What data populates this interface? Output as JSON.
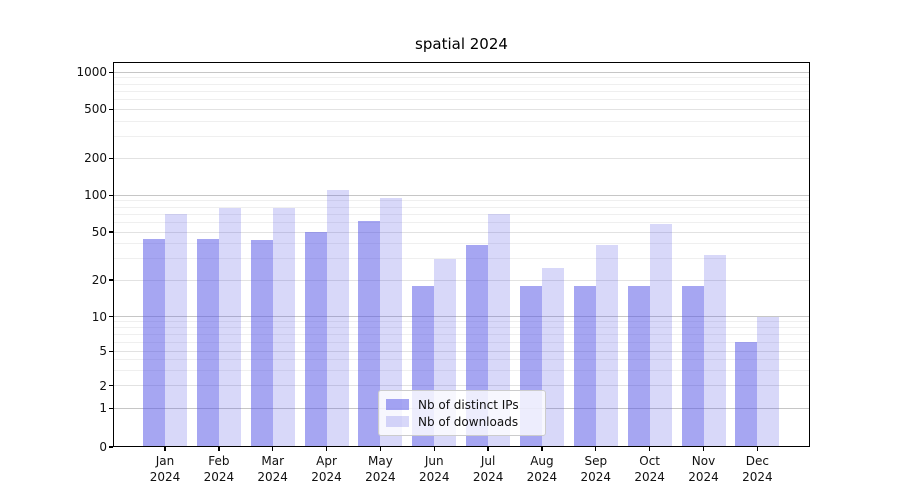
{
  "chart_data": {
    "type": "bar",
    "title": "spatial 2024",
    "months": [
      "Jan",
      "Feb",
      "Mar",
      "Apr",
      "May",
      "Jun",
      "Jul",
      "Aug",
      "Sep",
      "Oct",
      "Nov",
      "Dec"
    ],
    "year_label": "2024",
    "categories": [
      "Jan 2024",
      "Feb 2024",
      "Mar 2024",
      "Apr 2024",
      "May 2024",
      "Jun 2024",
      "Jul 2024",
      "Aug 2024",
      "Sep 2024",
      "Oct 2024",
      "Nov 2024",
      "Dec 2024"
    ],
    "series": [
      {
        "name": "Nb of distinct IPs",
        "color": "rgba(85,85,230,0.52)",
        "values": [
          44,
          44,
          43,
          50,
          61,
          18,
          39,
          18,
          18,
          18,
          18,
          6
        ]
      },
      {
        "name": "Nb of downloads",
        "color": "rgba(85,85,230,0.23)",
        "values": [
          70,
          78,
          78,
          110,
          95,
          30,
          70,
          25,
          39,
          58,
          32,
          10
        ]
      }
    ],
    "yticks": [
      0,
      1,
      2,
      5,
      10,
      20,
      50,
      100,
      200,
      500,
      1000
    ],
    "yscale": "symlog",
    "ylim": [
      0,
      1200
    ],
    "xlabel": "",
    "ylabel": "",
    "grid": "on",
    "legend_position": "lower center"
  },
  "colors": {
    "background": "#ffffff",
    "axis": "#000000",
    "text": "#111111",
    "grid_major": "#c6c6c6",
    "grid_minor": "#efefef",
    "bar_dark": "rgba(85,85,230,0.52)",
    "bar_light": "rgba(85,85,230,0.23)"
  }
}
